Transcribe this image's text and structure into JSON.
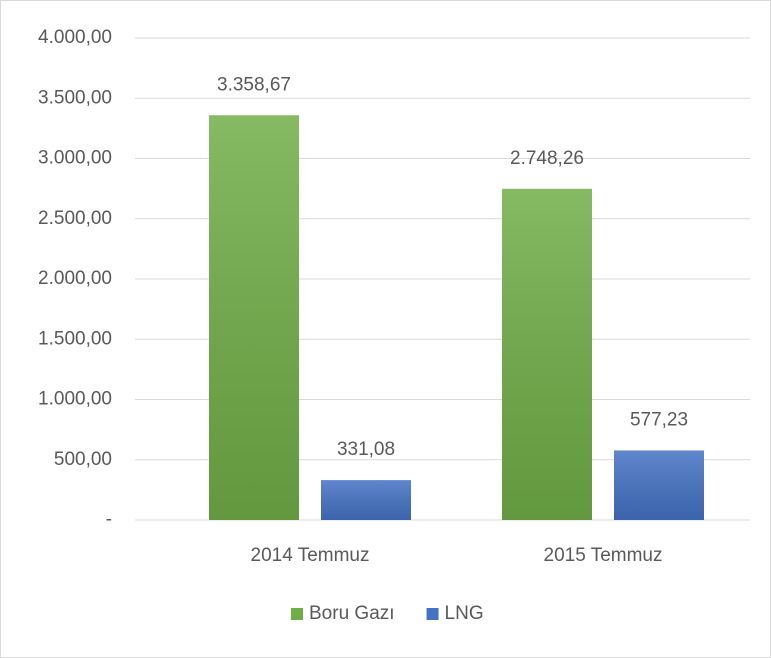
{
  "chart_data": {
    "type": "bar",
    "categories": [
      "2014 Temmuz",
      "2015 Temmuz"
    ],
    "series": [
      {
        "name": "Boru Gazı",
        "color": "#70ad47",
        "values": [
          3358.67,
          2748.26
        ],
        "value_labels": [
          "3.358,67",
          "2.748,26"
        ]
      },
      {
        "name": "LNG",
        "color": "#4472c4",
        "values": [
          331.08,
          577.23
        ],
        "value_labels": [
          "331,08",
          "577,23"
        ]
      }
    ],
    "ylim": [
      0,
      4000
    ],
    "yticks": [
      {
        "value": 0,
        "label": "-"
      },
      {
        "value": 500,
        "label": "500,00"
      },
      {
        "value": 1000,
        "label": "1.000,00"
      },
      {
        "value": 1500,
        "label": "1.500,00"
      },
      {
        "value": 2000,
        "label": "2.000,00"
      },
      {
        "value": 2500,
        "label": "2.500,00"
      },
      {
        "value": 3000,
        "label": "3.000,00"
      },
      {
        "value": 3500,
        "label": "3.500,00"
      },
      {
        "value": 4000,
        "label": "4.000,00"
      }
    ],
    "grid": true,
    "legend": "bottom"
  }
}
